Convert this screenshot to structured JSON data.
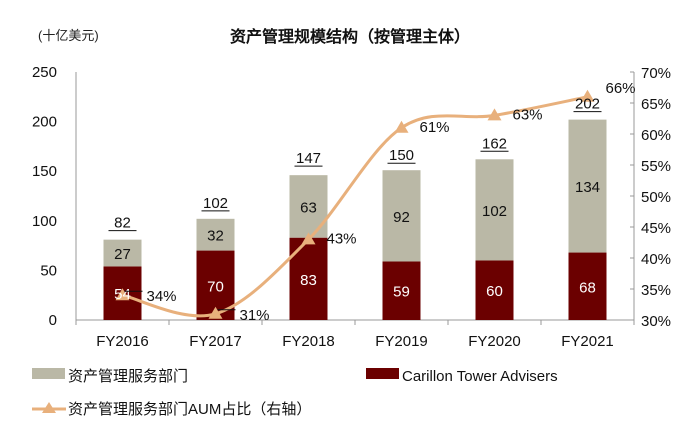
{
  "chart_data": {
    "type": "bar",
    "stacked": true,
    "title": "资产管理规模结构（按管理主体）",
    "unit_label": "(十亿美元)",
    "categories": [
      "FY2016",
      "FY2017",
      "FY2018",
      "FY2019",
      "FY2020",
      "FY2021"
    ],
    "series": [
      {
        "name": "Carillon Tower Advisers",
        "values": [
          54,
          70,
          83,
          59,
          60,
          68
        ],
        "color": "#6b0000",
        "axis": "left"
      },
      {
        "name": "资产管理服务部门",
        "values": [
          27,
          32,
          63,
          92,
          102,
          134
        ],
        "color": "#bab8a6",
        "axis": "left"
      },
      {
        "name": "资产管理服务部门AUM占比（右轴）",
        "type": "line",
        "values": [
          34,
          31,
          43,
          61,
          63,
          66
        ],
        "color": "#e8b07c",
        "marker": "triangle",
        "axis": "right"
      }
    ],
    "totals": [
      82,
      102,
      147,
      150,
      162,
      202
    ],
    "ylim": [
      0,
      250
    ],
    "yticks": [
      "0",
      "50",
      "100",
      "150",
      "200",
      "250"
    ],
    "y2lim": [
      30,
      70
    ],
    "y2ticks": [
      "30%",
      "35%",
      "40%",
      "45%",
      "50%",
      "55%",
      "60%",
      "65%",
      "70%"
    ],
    "grid": false,
    "legend_position": "bottom"
  }
}
